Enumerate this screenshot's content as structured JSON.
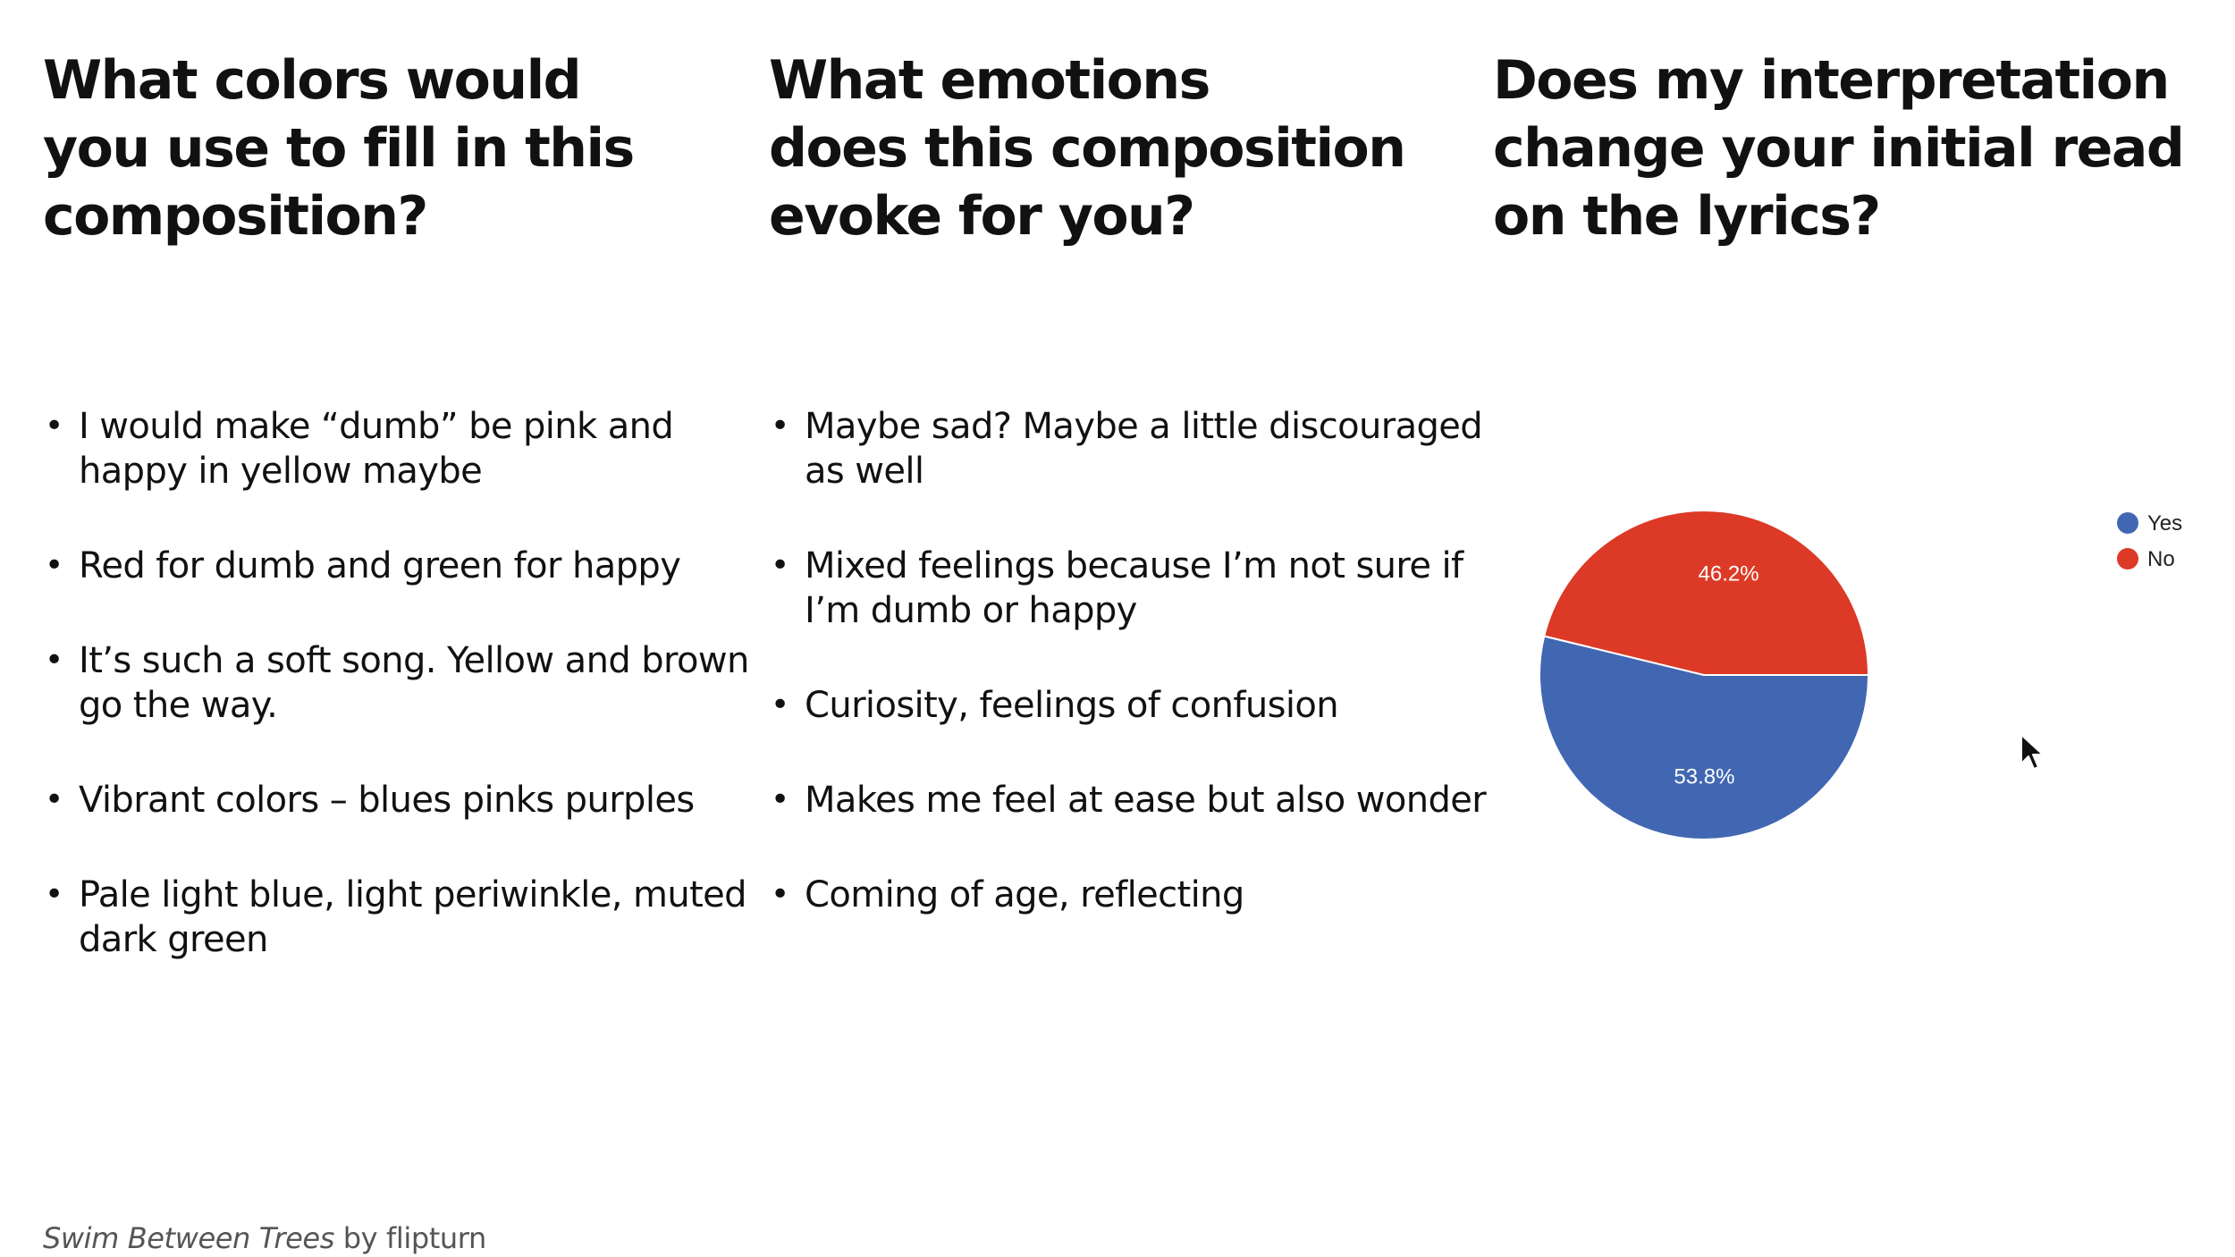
{
  "column_1": {
    "heading_lines": [
      "What colors would",
      "you use to fill in this",
      "composition?"
    ],
    "bullets": [
      "I would make “dumb” be pink and happy in yellow maybe",
      "Red for dumb and green for happy",
      "It’s such a soft song. Yellow and brown go the way.",
      "Vibrant colors – blues pinks purples",
      "Pale light blue, light periwinkle, muted dark green"
    ]
  },
  "column_2": {
    "heading_lines": [
      "What emotions",
      "does this composition",
      "evoke for you?"
    ],
    "bullets": [
      "Maybe sad? Maybe a little discouraged as well",
      "Mixed feelings because I’m not sure if I’m dumb or happy",
      "Curiosity, feelings of confusion",
      "Makes me feel at ease but also wonder",
      "Coming of age, reflecting"
    ]
  },
  "column_3": {
    "heading_lines": [
      "Does my interpretation",
      "change your initial read",
      "on the lyrics?"
    ]
  },
  "chart_data": {
    "type": "pie",
    "title": "",
    "slices": [
      {
        "name": "Yes",
        "value": 53.8,
        "label": "53.8%",
        "color": "#4267b2"
      },
      {
        "name": "No",
        "value": 46.2,
        "label": "46.2%",
        "color": "#dc3a26"
      }
    ],
    "legend_placement": "top-right"
  },
  "footer": {
    "title": "Swim Between Trees",
    "by": " by flipturn"
  },
  "icons": {
    "cursor": "mouse-pointer-icon"
  }
}
